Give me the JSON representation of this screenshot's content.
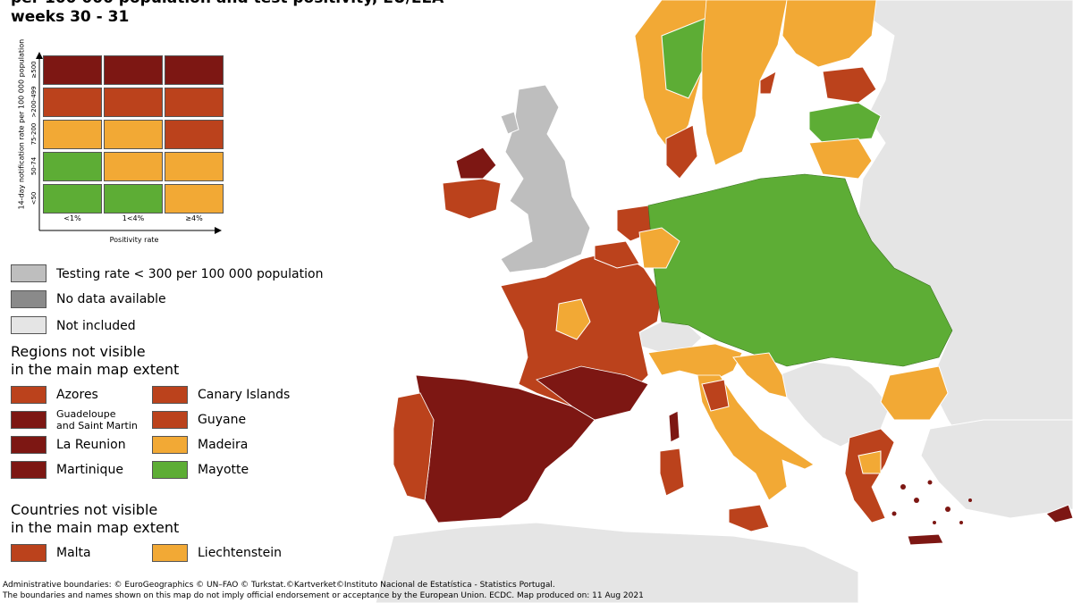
{
  "title_lines": [
    "per 100 000 population and test positivity, EU/EEA",
    "weeks 30 - 31"
  ],
  "colors": {
    "dark_red": "#7d1713",
    "red": "#bb421c",
    "orange": "#f2a935",
    "green": "#5dad35",
    "grey_testing": "#bebebe",
    "grey_nodata": "#8a8a8a",
    "not_included": "#e5e5e5",
    "sea": "#ffffff"
  },
  "matrix": {
    "y_title": "14-day notification rate per 100 000 population",
    "x_title": "Positivity rate",
    "rows": [
      "≥500",
      ">200-499",
      "75-200",
      "50-74",
      "<50"
    ],
    "cols": [
      "<1%",
      "1<4%",
      "≥4%"
    ],
    "cells": [
      [
        "dark_red",
        "dark_red",
        "dark_red"
      ],
      [
        "red",
        "red",
        "red"
      ],
      [
        "orange",
        "orange",
        "red"
      ],
      [
        "green",
        "orange",
        "orange"
      ],
      [
        "green",
        "green",
        "orange"
      ]
    ]
  },
  "legend": {
    "testing": "Testing rate < 300 per 100 000 population",
    "nodata": "No data available",
    "not_included": "Not included",
    "regions_heading": [
      "Regions not visible",
      "in the main map extent"
    ],
    "regions": [
      {
        "label": "Azores",
        "color": "red"
      },
      {
        "label": "Canary Islands",
        "color": "red"
      },
      {
        "label": "Guadeloupe\nand Saint Martin",
        "color": "dark_red"
      },
      {
        "label": "Guyane",
        "color": "red"
      },
      {
        "label": "La Reunion",
        "color": "dark_red"
      },
      {
        "label": "Madeira",
        "color": "orange"
      },
      {
        "label": "Martinique",
        "color": "dark_red"
      },
      {
        "label": "Mayotte",
        "color": "green"
      }
    ],
    "countries_heading": [
      "Countries not visible",
      "in the main map extent"
    ],
    "countries": [
      {
        "label": "Malta",
        "color": "red"
      },
      {
        "label": "Liechtenstein",
        "color": "orange"
      }
    ]
  },
  "footer": [
    "Administrative boundaries: © EuroGeographics © UN–FAO © Turkstat.©Kartverket©Instituto Nacional de Estatística - Statistics Portugal.",
    "The boundaries and names shown on this map do not imply official endorsement or acceptance by the European Union. ECDC. Map produced on: 11 Aug 2021"
  ]
}
